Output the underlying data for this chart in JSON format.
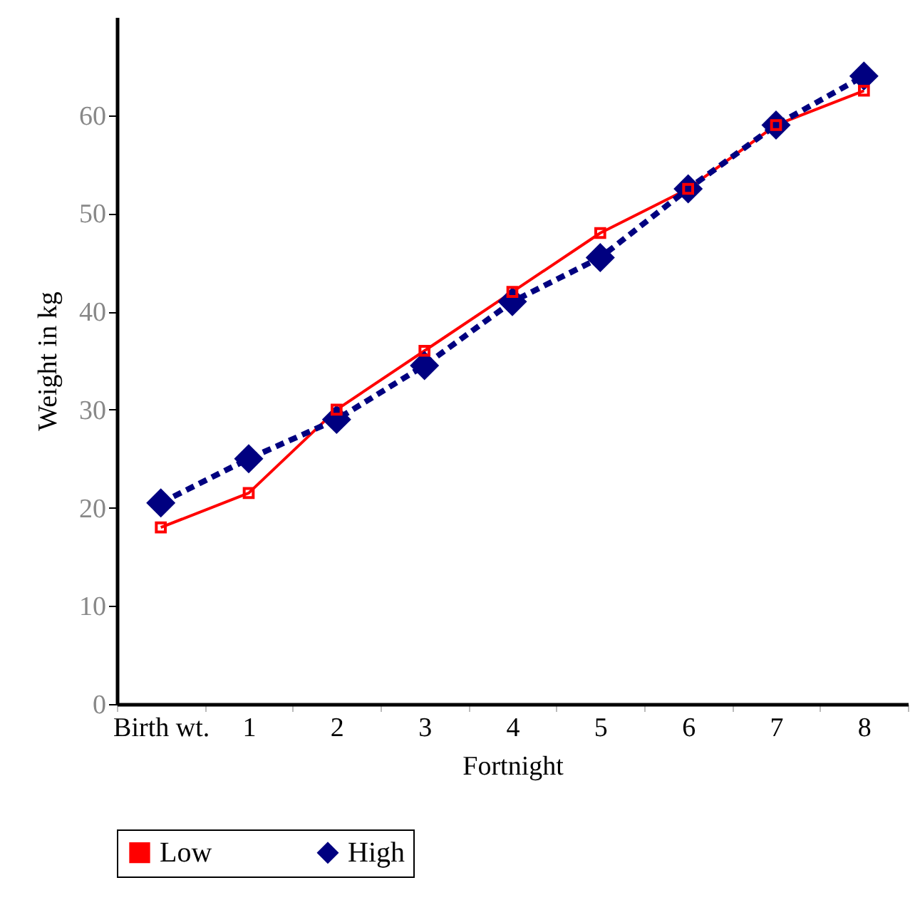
{
  "chart_data": {
    "type": "line",
    "xlabel": "Fortnight",
    "ylabel": "Weight in kg",
    "categories": [
      "Birth wt.",
      "1",
      "2",
      "3",
      "4",
      "5",
      "6",
      "7",
      "8"
    ],
    "series": [
      {
        "name": "Low",
        "color": "#ff0000",
        "marker": "square",
        "line_style": "solid",
        "values": [
          18,
          21.5,
          30,
          36,
          42,
          48,
          52.5,
          59,
          62.5
        ]
      },
      {
        "name": "High",
        "color": "#000080",
        "marker": "diamond",
        "line_style": "dashed",
        "values": [
          20.5,
          25,
          29,
          34.5,
          41,
          45.5,
          52.5,
          59,
          64
        ]
      }
    ],
    "ylim": [
      0,
      70
    ],
    "yticks": [
      0,
      10,
      20,
      30,
      40,
      50,
      60
    ],
    "legend": "bottom"
  }
}
